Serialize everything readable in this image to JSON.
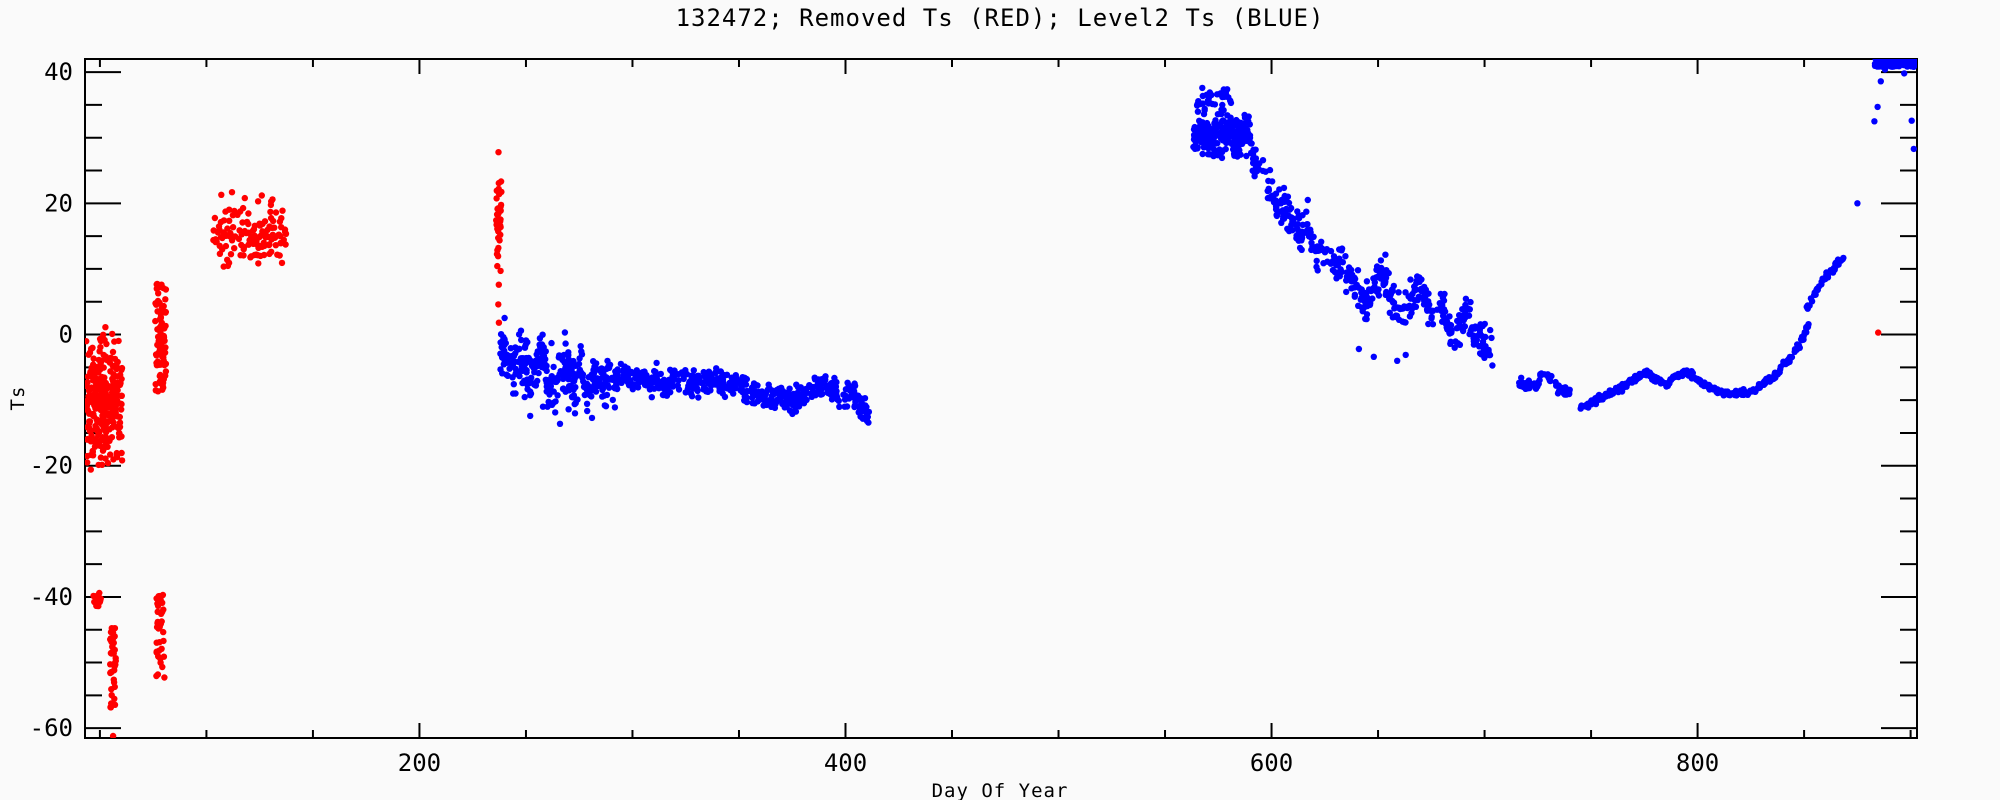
{
  "chart_data": {
    "type": "scatter",
    "title": "132472; Removed Ts (RED); Level2 Ts (BLUE)",
    "xlabel": "Day Of Year",
    "ylabel": "Ts",
    "xlim": [
      43,
      903
    ],
    "ylim": [
      -61.5,
      42
    ],
    "x_major_ticks": [
      200,
      400,
      600,
      800
    ],
    "x_minor_step": 50,
    "y_major_ticks": [
      40,
      20,
      0,
      -20,
      -40,
      -60
    ],
    "y_minor_step": 5,
    "grid": false,
    "legend": "encoded in title (RED = Removed Ts, BLUE = Level2 Ts)",
    "background_color": "#fafafa",
    "axis_color": "#000000",
    "series": [
      {
        "name": "Removed Ts",
        "color": "#ff0000",
        "clusters": [
          {
            "kind": "box",
            "label": "early-scatter-days43-60",
            "x": [
              43.5,
              60.5
            ],
            "y": [
              -22,
              1.5
            ],
            "n": 300,
            "bias": "center"
          },
          {
            "kind": "box",
            "label": "cold-dots-near-minus40",
            "x": [
              46.5,
              50.5
            ],
            "y": [
              -41.5,
              -39.3
            ],
            "n": 14,
            "bias": "none"
          },
          {
            "kind": "box",
            "label": "cold-strip-days55-57",
            "x": [
              54.8,
              57.5
            ],
            "y": [
              -57.5,
              -44.5
            ],
            "n": 42,
            "bias": "none"
          },
          {
            "kind": "points",
            "label": "cold-outlier-bottom",
            "pts": [
              [
                56.2,
                -61.2
              ]
            ]
          },
          {
            "kind": "box",
            "label": "strip-day78-upper",
            "x": [
              76,
              81
            ],
            "y": [
              -8.8,
              7.8
            ],
            "n": 80,
            "bias": "none"
          },
          {
            "kind": "box",
            "label": "strip-day78-lower",
            "x": [
              76.5,
              80.5
            ],
            "y": [
              -52.3,
              -39.2
            ],
            "n": 36,
            "bias": "none"
          },
          {
            "kind": "box",
            "label": "warm-blob-days103-137",
            "x": [
              103,
              137.5
            ],
            "y": [
              9.5,
              20.5
            ],
            "n": 130,
            "bias": "center"
          },
          {
            "kind": "points",
            "label": "warm-blob-top-dots",
            "pts": [
              [
                107,
                21.3
              ],
              [
                112,
                21.7
              ],
              [
                118,
                20.8
              ],
              [
                126,
                21.2
              ],
              [
                131,
                20.6
              ]
            ]
          },
          {
            "kind": "box",
            "label": "day237-strip-dense",
            "x": [
              236,
              238.5
            ],
            "y": [
              16.5,
              23.5
            ],
            "n": 26,
            "bias": "none"
          },
          {
            "kind": "box",
            "label": "day237-strip-sparse",
            "x": [
              236.3,
              238.2
            ],
            "y": [
              7.5,
              16.5
            ],
            "n": 14,
            "bias": "none"
          },
          {
            "kind": "points",
            "label": "day237-extremes",
            "pts": [
              [
                237.1,
                27.8
              ],
              [
                237.3,
                1.8
              ],
              [
                237.0,
                4.6
              ]
            ]
          },
          {
            "kind": "points",
            "label": "late-single-day885",
            "pts": [
              [
                884.8,
                0.3
              ]
            ]
          }
        ]
      },
      {
        "name": "Level2 Ts",
        "color": "#0000ff",
        "clusters": [
          {
            "kind": "path",
            "label": "band1-noisy-start",
            "n": 300,
            "noise": 2.0,
            "pts": [
              [
                238,
                -1.5
              ],
              [
                241,
                -3
              ],
              [
                244,
                -5
              ],
              [
                246,
                -2.5
              ],
              [
                249,
                -4.5
              ],
              [
                252,
                -7
              ],
              [
                255,
                -4.5
              ],
              [
                258,
                -3.5
              ],
              [
                261,
                -7.5
              ],
              [
                264,
                -8.5
              ],
              [
                266,
                -5
              ],
              [
                269,
                -4.5
              ],
              [
                272,
                -8
              ],
              [
                275,
                -6
              ],
              [
                278,
                -9.5
              ],
              [
                281,
                -7
              ],
              [
                284,
                -5.5
              ],
              [
                287,
                -8
              ],
              [
                290,
                -6.5
              ],
              [
                292,
                -7
              ]
            ]
          },
          {
            "kind": "points",
            "label": "band1-spikes",
            "pts": [
              [
                252,
                -12.4
              ],
              [
                258,
                -11
              ],
              [
                266,
                -13.6
              ],
              [
                270,
                -11.4
              ],
              [
                281,
                -12.7
              ],
              [
                287,
                -10.8
              ],
              [
                250,
                -0.9
              ],
              [
                262,
                -1.3
              ],
              [
                273,
                -12
              ],
              [
                244,
                -9
              ]
            ]
          },
          {
            "kind": "path",
            "label": "band1-main-days292-412",
            "n": 520,
            "noise": 0.9,
            "pts": [
              [
                292,
                -7
              ],
              [
                296,
                -6.2
              ],
              [
                300,
                -7.2
              ],
              [
                304,
                -6
              ],
              [
                308,
                -7.5
              ],
              [
                312,
                -6.8
              ],
              [
                316,
                -7.8
              ],
              [
                320,
                -6.5
              ],
              [
                324,
                -6.8
              ],
              [
                328,
                -7.6
              ],
              [
                332,
                -6.9
              ],
              [
                336,
                -7.2
              ],
              [
                340,
                -6.8
              ],
              [
                344,
                -7.8
              ],
              [
                348,
                -7.4
              ],
              [
                352,
                -8.2
              ],
              [
                356,
                -8.8
              ],
              [
                360,
                -9.3
              ],
              [
                364,
                -9.8
              ],
              [
                368,
                -9
              ],
              [
                372,
                -10.2
              ],
              [
                376,
                -10
              ],
              [
                380,
                -9.2
              ],
              [
                384,
                -8.8
              ],
              [
                388,
                -7.6
              ],
              [
                392,
                -7.9
              ],
              [
                396,
                -8.6
              ],
              [
                400,
                -9.2
              ],
              [
                404,
                -9.6
              ],
              [
                407,
                -10.5
              ],
              [
                409,
                -11.5
              ],
              [
                411,
                -13
              ]
            ]
          },
          {
            "kind": "box",
            "label": "cluster2-core-days563-590",
            "x": [
              563,
              590
            ],
            "y": [
              26.5,
              34
            ],
            "n": 230,
            "bias": "center"
          },
          {
            "kind": "box",
            "label": "cluster2-top",
            "x": [
              565,
              581
            ],
            "y": [
              33.5,
              37.5
            ],
            "n": 34,
            "bias": "none"
          },
          {
            "kind": "points",
            "label": "cluster2-peak",
            "pts": [
              [
                567.5,
                37.6
              ],
              [
                571,
                36.9
              ]
            ]
          },
          {
            "kind": "path",
            "label": "decline-days590-704",
            "n": 430,
            "noise": 1.4,
            "pts": [
              [
                590,
                28.5
              ],
              [
                593,
                26.5
              ],
              [
                596,
                24.5
              ],
              [
                599,
                22.5
              ],
              [
                602,
                21
              ],
              [
                605,
                19.8
              ],
              [
                608,
                18.2
              ],
              [
                611,
                16.8
              ],
              [
                614,
                15
              ],
              [
                617,
                16
              ],
              [
                620,
                13.4
              ],
              [
                623,
                12.2
              ],
              [
                626,
                13.2
              ],
              [
                629,
                10.6
              ],
              [
                632,
                11.6
              ],
              [
                635,
                9
              ],
              [
                638,
                7.6
              ],
              [
                641,
                6
              ],
              [
                644,
                4.8
              ],
              [
                647,
                6.6
              ],
              [
                650,
                8.6
              ],
              [
                653,
                9.4
              ],
              [
                656,
                6.2
              ],
              [
                659,
                4.2
              ],
              [
                662,
                2.6
              ],
              [
                665,
                5
              ],
              [
                668,
                7.4
              ],
              [
                671,
                6
              ],
              [
                674,
                4.2
              ],
              [
                677,
                2.6
              ],
              [
                680,
                4
              ],
              [
                683,
                2.2
              ],
              [
                686,
                0.8
              ],
              [
                689,
                1.8
              ],
              [
                692,
                2.8
              ],
              [
                695,
                0.6
              ],
              [
                698,
                -0.6
              ],
              [
                701,
                -1.8
              ],
              [
                704,
                -2.8
              ]
            ]
          },
          {
            "kind": "points",
            "label": "decline-outliers",
            "pts": [
              [
                617,
                20.5
              ],
              [
                641,
                -2.2
              ],
              [
                648,
                -3.4
              ],
              [
                659,
                -4
              ],
              [
                663,
                -3.1
              ],
              [
                686,
                -2.0
              ]
            ]
          },
          {
            "kind": "path",
            "label": "flat-clumps-days716-740",
            "n": 70,
            "noise": 0.4,
            "pts": [
              [
                716,
                -7.4
              ],
              [
                719,
                -7.8
              ],
              [
                722,
                -7.6
              ],
              [
                725,
                -7.9
              ],
              [
                727,
                -5.5
              ],
              [
                729,
                -5.9
              ],
              [
                731,
                -6.9
              ],
              [
                733,
                -7.6
              ],
              [
                735,
                -8.2
              ],
              [
                737,
                -8.5
              ],
              [
                740,
                -8.7
              ]
            ]
          },
          {
            "kind": "path",
            "label": "smooth-curve-days745-852",
            "n": 360,
            "noise": 0.22,
            "pts": [
              [
                745,
                -11.2
              ],
              [
                750,
                -10.4
              ],
              [
                755,
                -9.5
              ],
              [
                760,
                -8.8
              ],
              [
                765,
                -8
              ],
              [
                770,
                -6.8
              ],
              [
                775,
                -5.9
              ],
              [
                778,
                -6.2
              ],
              [
                782,
                -7.3
              ],
              [
                786,
                -7.6
              ],
              [
                790,
                -6.3
              ],
              [
                794,
                -5.8
              ],
              [
                797,
                -6.1
              ],
              [
                801,
                -7
              ],
              [
                805,
                -7.9
              ],
              [
                810,
                -8.7
              ],
              [
                815,
                -9.1
              ],
              [
                820,
                -8.8
              ],
              [
                824,
                -8.9
              ],
              [
                828,
                -8.2
              ],
              [
                832,
                -7.2
              ],
              [
                836,
                -6.2
              ],
              [
                840,
                -4.9
              ],
              [
                844,
                -3.3
              ],
              [
                847,
                -1.9
              ],
              [
                850,
                -0.2
              ],
              [
                852,
                1.6
              ]
            ]
          },
          {
            "kind": "path",
            "label": "rising-dashes-days851-869",
            "n": 46,
            "noise": 0.25,
            "pts": [
              [
                851,
                4.2
              ],
              [
                855,
                6.2
              ],
              [
                859,
                8.2
              ],
              [
                863,
                9.8
              ],
              [
                867,
                11.2
              ],
              [
                869,
                11.8
              ]
            ]
          },
          {
            "kind": "points",
            "label": "steep-rise-dots",
            "pts": [
              [
                875,
                20
              ],
              [
                883,
                32.5
              ],
              [
                884.5,
                34.7
              ],
              [
                886,
                38.6
              ],
              [
                888,
                40.4
              ],
              [
                890.5,
                40.9
              ],
              [
                897,
                39.8
              ],
              [
                900.5,
                32.6
              ],
              [
                901.5,
                28.3
              ]
            ]
          },
          {
            "kind": "box",
            "label": "top-clipped-band-days883-903",
            "x": [
              883,
              903
            ],
            "y": [
              40.8,
              42.4
            ],
            "n": 120,
            "bias": "none"
          }
        ]
      }
    ]
  }
}
